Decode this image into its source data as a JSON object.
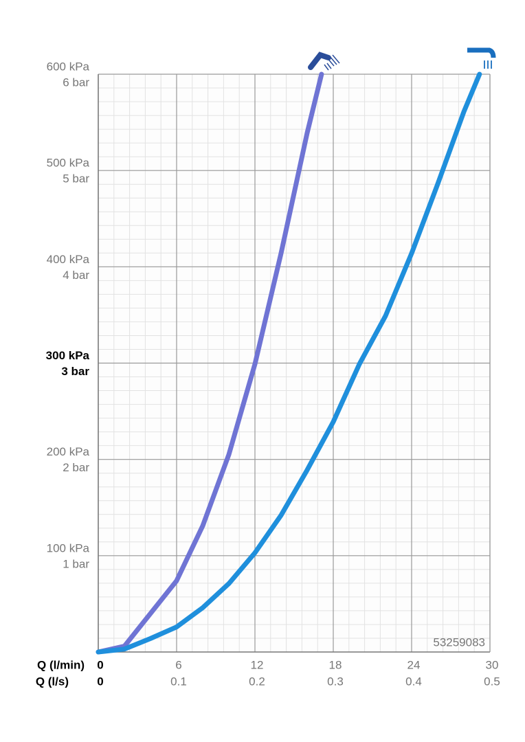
{
  "chart_data": {
    "type": "line",
    "xlabel": "Q (l/min)",
    "x2label": "Q (l/s)",
    "xlim": [
      0,
      30
    ],
    "xticks": [
      0,
      6,
      12,
      18,
      24,
      30
    ],
    "x2lim": [
      0,
      0.5
    ],
    "x2ticks": [
      0,
      0.1,
      0.2,
      0.3,
      0.4,
      0.5
    ],
    "ylim": [
      0,
      600
    ],
    "yticks": [
      {
        "value": 100,
        "label": "100 kPa"
      },
      {
        "value": 200,
        "label": "200 kPa"
      },
      {
        "value": 300,
        "label": "300 kPa"
      },
      {
        "value": 400,
        "label": "400 kPa"
      },
      {
        "value": 500,
        "label": "500 kPa"
      },
      {
        "value": 600,
        "label": "600 kPa"
      }
    ],
    "yticks_bar": [
      {
        "value": 100,
        "label": "1 bar"
      },
      {
        "value": 200,
        "label": "2 bar"
      },
      {
        "value": 300,
        "label": "3 bar"
      },
      {
        "value": 400,
        "label": "4 bar"
      },
      {
        "value": 500,
        "label": "5 bar"
      },
      {
        "value": 600,
        "label": "6 bar"
      }
    ],
    "bold_ytick": 300,
    "grid": true,
    "minor_grid": true,
    "annotation": "53259083",
    "series": [
      {
        "color": "#6f74d4",
        "x": [
          0,
          2,
          4,
          6,
          8,
          10,
          12,
          14,
          16,
          17.1
        ],
        "values": [
          0,
          6,
          40,
          74,
          131,
          205,
          299,
          414,
          539,
          600
        ]
      },
      {
        "color": "#1f8fdc",
        "x": [
          0,
          2,
          4,
          6,
          8,
          10,
          12,
          14,
          16,
          18,
          20,
          22,
          24,
          26,
          28,
          29.2
        ],
        "values": [
          0,
          3,
          14,
          26,
          46,
          71,
          103,
          142,
          189,
          239,
          299,
          349,
          414,
          486,
          561,
          600
        ]
      }
    ]
  }
}
